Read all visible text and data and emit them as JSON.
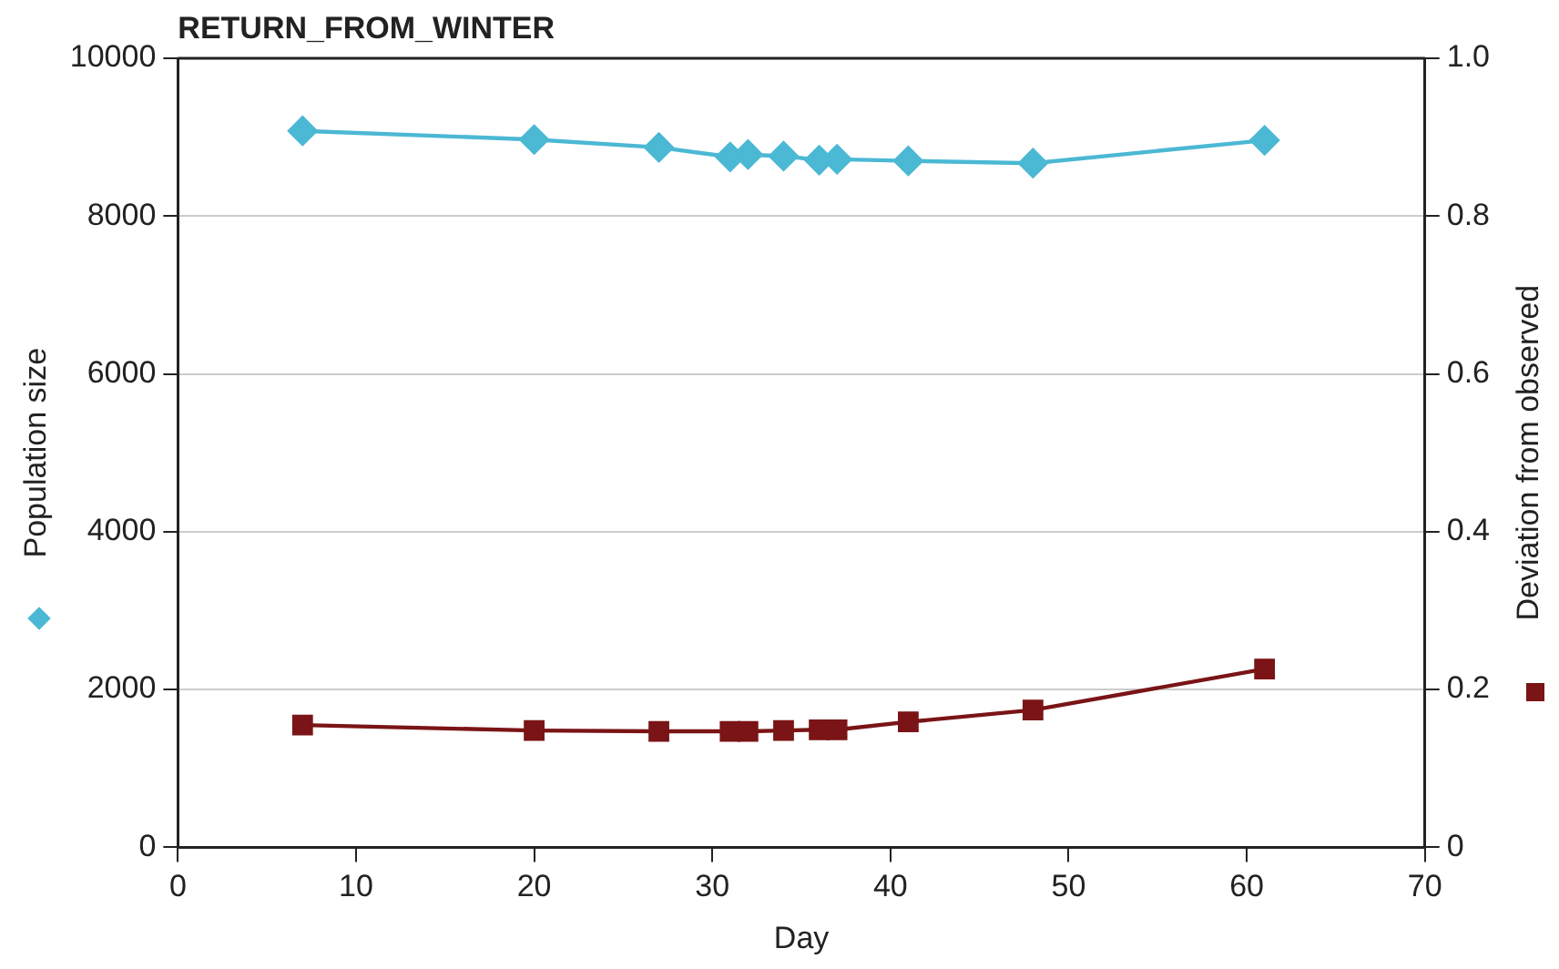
{
  "chart_data": {
    "type": "line",
    "title": "RETURN_FROM_WINTER",
    "xlabel": "Day",
    "ylabel": "Population size",
    "y2label": "Deviation from observed",
    "x": [
      7,
      20,
      27,
      31,
      32,
      34,
      36,
      37,
      41,
      48,
      61
    ],
    "series": [
      {
        "color": "#4bb8d4",
        "marker": "diamond",
        "values": [
          9080,
          8970,
          8870,
          8750,
          8780,
          8760,
          8710,
          8720,
          8700,
          8670,
          8960
        ]
      },
      {
        "color": "#7a1416",
        "marker": "square",
        "axis": "y2",
        "values": [
          0.155,
          0.148,
          0.147,
          0.147,
          0.147,
          0.148,
          0.149,
          0.149,
          0.159,
          0.174,
          0.226
        ]
      }
    ],
    "xlim": [
      0,
      70
    ],
    "xticks": [
      0,
      10,
      20,
      30,
      40,
      50,
      60,
      70
    ],
    "ylim": [
      0,
      10000
    ],
    "yticks": [
      0,
      2000,
      4000,
      6000,
      8000,
      10000
    ],
    "y2lim": [
      0,
      1
    ],
    "y2ticks": [
      0,
      {
        "value": 0.2,
        "label": "0.2"
      },
      {
        "value": 0.4,
        "label": "0.4"
      },
      {
        "value": 0.6,
        "label": "0.6"
      },
      {
        "value": 0.8,
        "label": "0.8"
      },
      {
        "value": 1,
        "label": "1.0"
      }
    ],
    "grid": "y",
    "legend": false
  }
}
